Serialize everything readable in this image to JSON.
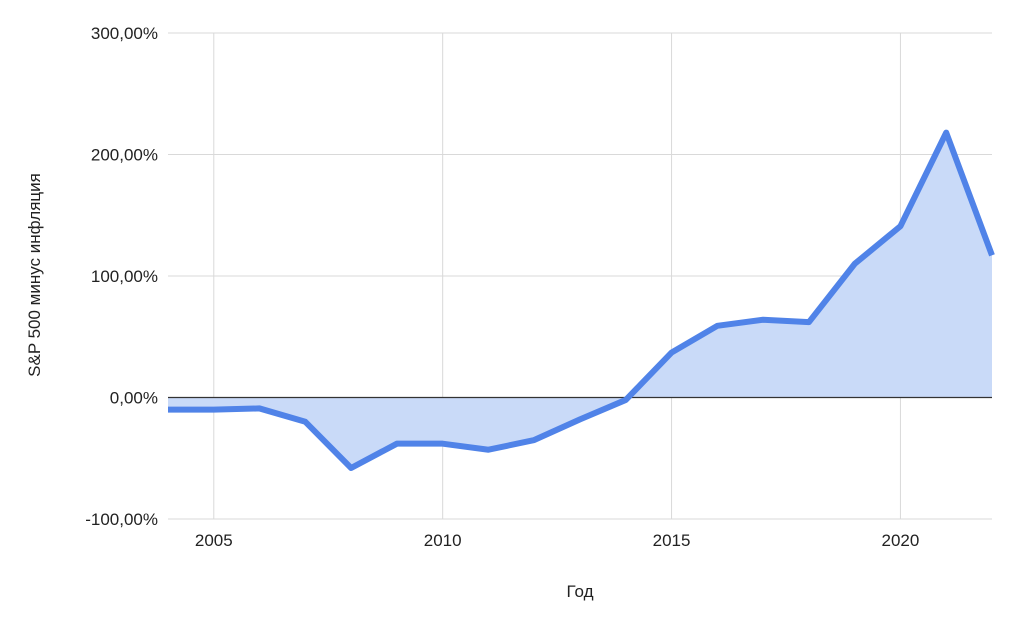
{
  "chart_data": {
    "type": "area",
    "xlabel": "Год",
    "ylabel": "S&P 500 минус инфляция",
    "x": [
      2004,
      2005,
      2006,
      2007,
      2008,
      2009,
      2010,
      2011,
      2012,
      2013,
      2014,
      2015,
      2016,
      2017,
      2018,
      2019,
      2020,
      2021,
      2022
    ],
    "series": [
      {
        "values": [
          -10,
          -10,
          -9,
          -20,
          -58,
          -38,
          -38,
          -43,
          -35,
          -18,
          -2,
          37,
          59,
          64,
          62,
          110,
          141,
          218,
          117
        ]
      }
    ],
    "xlim": [
      2004,
      2022
    ],
    "ylim": [
      -100,
      300
    ],
    "y_ticks": [
      {
        "value": -100,
        "label": "-100,00%"
      },
      {
        "value": 0,
        "label": "0,00%"
      },
      {
        "value": 100,
        "label": "100,00%"
      },
      {
        "value": 200,
        "label": "200,00%"
      },
      {
        "value": 300,
        "label": "300,00%"
      }
    ],
    "x_ticks": [
      {
        "value": 2005,
        "label": "2005"
      },
      {
        "value": 2010,
        "label": "2010"
      },
      {
        "value": 2015,
        "label": "2015"
      },
      {
        "value": 2020,
        "label": "2020"
      }
    ],
    "grid": true,
    "colors": {
      "line": "#5083e8",
      "fill": "#c9daf8",
      "grid": "#d9d9d9",
      "zero_line": "#333333"
    }
  }
}
